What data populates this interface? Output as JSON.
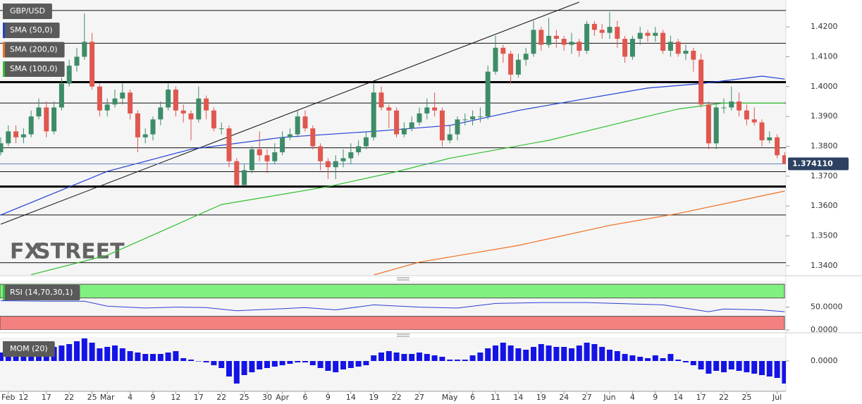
{
  "chart_data": [
    {
      "type": "candlestick",
      "name": "GBP/USD",
      "categories": [
        "Feb 9",
        "Feb 10",
        "Feb 11",
        "Feb 12",
        "Feb 15",
        "Feb 16",
        "Feb 17",
        "Feb 18",
        "Feb 19",
        "Feb 22",
        "Feb 23",
        "Feb 24",
        "Feb 25",
        "Feb 26",
        "Mar 1",
        "Mar 2",
        "Mar 3",
        "Mar 4",
        "Mar 5",
        "Mar 8",
        "Mar 9",
        "Mar 10",
        "Mar 11",
        "Mar 12",
        "Mar 15",
        "Mar 16",
        "Mar 17",
        "Mar 18",
        "Mar 19",
        "Mar 22",
        "Mar 23",
        "Mar 24",
        "Mar 25",
        "Mar 26",
        "Mar 29",
        "Mar 30",
        "Mar 31",
        "Apr 1",
        "Apr 2",
        "Apr 5",
        "Apr 6",
        "Apr 7",
        "Apr 8",
        "Apr 9",
        "Apr 12",
        "Apr 13",
        "Apr 14",
        "Apr 15",
        "Apr 16",
        "Apr 19",
        "Apr 20",
        "Apr 21",
        "Apr 22",
        "Apr 23",
        "Apr 26",
        "Apr 27",
        "Apr 28",
        "Apr 29",
        "Apr 30",
        "May 3",
        "May 4",
        "May 5",
        "May 6",
        "May 7",
        "May 10",
        "May 11",
        "May 12",
        "May 13",
        "May 14",
        "May 17",
        "May 18",
        "May 19",
        "May 20",
        "May 21",
        "May 24",
        "May 25",
        "May 26",
        "May 27",
        "May 28",
        "May 31",
        "Jun 1",
        "Jun 2",
        "Jun 3",
        "Jun 4",
        "Jun 7",
        "Jun 8",
        "Jun 9",
        "Jun 10",
        "Jun 11",
        "Jun 14",
        "Jun 15",
        "Jun 16",
        "Jun 17",
        "Jun 18",
        "Jun 21",
        "Jun 22",
        "Jun 23",
        "Jun 24",
        "Jun 25",
        "Jun 28",
        "Jun 29",
        "Jun 30",
        "Jul 1",
        "Jul 2"
      ],
      "open": [
        1.378,
        1.381,
        1.385,
        1.383,
        1.384,
        1.39,
        1.393,
        1.385,
        1.393,
        1.401,
        1.407,
        1.41,
        1.415,
        1.4,
        1.392,
        1.394,
        1.396,
        1.398,
        1.391,
        1.383,
        1.384,
        1.389,
        1.393,
        1.399,
        1.392,
        1.391,
        1.389,
        1.396,
        1.392,
        1.386,
        1.386,
        1.375,
        1.367,
        1.372,
        1.379,
        1.377,
        1.375,
        1.378,
        1.383,
        1.384,
        1.39,
        1.386,
        1.38,
        1.375,
        1.373,
        1.375,
        1.376,
        1.378,
        1.38,
        1.383,
        1.398,
        1.393,
        1.392,
        1.384,
        1.386,
        1.388,
        1.391,
        1.393,
        1.392,
        1.382,
        1.384,
        1.389,
        1.389,
        1.39,
        1.39,
        1.405,
        1.413,
        1.411,
        1.404,
        1.409,
        1.411,
        1.419,
        1.414,
        1.417,
        1.416,
        1.414,
        1.415,
        1.412,
        1.421,
        1.419,
        1.418,
        1.42,
        1.416,
        1.41,
        1.416,
        1.418,
        1.417,
        1.418,
        1.412,
        1.415,
        1.411,
        1.412,
        1.409,
        1.394,
        1.381,
        1.393,
        1.393,
        1.395,
        1.392,
        1.389,
        1.388,
        1.382,
        1.383,
        1.377
      ],
      "high": [
        1.383,
        1.387,
        1.387,
        1.386,
        1.392,
        1.396,
        1.395,
        1.395,
        1.403,
        1.409,
        1.413,
        1.4245,
        1.418,
        1.401,
        1.396,
        1.399,
        1.401,
        1.399,
        1.392,
        1.386,
        1.39,
        1.395,
        1.401,
        1.4,
        1.394,
        1.392,
        1.4,
        1.397,
        1.393,
        1.388,
        1.387,
        1.376,
        1.374,
        1.38,
        1.385,
        1.379,
        1.381,
        1.385,
        1.386,
        1.392,
        1.392,
        1.387,
        1.381,
        1.376,
        1.377,
        1.379,
        1.381,
        1.382,
        1.385,
        1.401,
        1.4,
        1.394,
        1.393,
        1.388,
        1.39,
        1.393,
        1.396,
        1.398,
        1.393,
        1.387,
        1.39,
        1.391,
        1.392,
        1.393,
        1.407,
        1.417,
        1.414,
        1.412,
        1.411,
        1.413,
        1.422,
        1.42,
        1.423,
        1.419,
        1.417,
        1.418,
        1.416,
        1.422,
        1.422,
        1.421,
        1.425,
        1.422,
        1.417,
        1.417,
        1.42,
        1.419,
        1.42,
        1.419,
        1.417,
        1.416,
        1.414,
        1.413,
        1.411,
        1.395,
        1.394,
        1.396,
        1.4,
        1.398,
        1.394,
        1.393,
        1.389,
        1.385,
        1.384,
        1.378
      ],
      "low": [
        1.377,
        1.38,
        1.381,
        1.381,
        1.383,
        1.389,
        1.383,
        1.384,
        1.392,
        1.4,
        1.405,
        1.409,
        1.399,
        1.39,
        1.39,
        1.393,
        1.394,
        1.389,
        1.378,
        1.381,
        1.382,
        1.387,
        1.392,
        1.39,
        1.388,
        1.382,
        1.388,
        1.389,
        1.385,
        1.384,
        1.373,
        1.367,
        1.367,
        1.371,
        1.375,
        1.371,
        1.374,
        1.377,
        1.382,
        1.383,
        1.385,
        1.379,
        1.372,
        1.369,
        1.369,
        1.373,
        1.374,
        1.377,
        1.379,
        1.382,
        1.392,
        1.386,
        1.383,
        1.383,
        1.385,
        1.387,
        1.389,
        1.39,
        1.38,
        1.381,
        1.382,
        1.387,
        1.387,
        1.388,
        1.389,
        1.404,
        1.408,
        1.401,
        1.403,
        1.407,
        1.41,
        1.412,
        1.413,
        1.413,
        1.412,
        1.411,
        1.41,
        1.411,
        1.417,
        1.416,
        1.416,
        1.413,
        1.408,
        1.409,
        1.414,
        1.415,
        1.415,
        1.411,
        1.41,
        1.41,
        1.409,
        1.405,
        1.393,
        1.379,
        1.379,
        1.391,
        1.392,
        1.39,
        1.387,
        1.387,
        1.38,
        1.381,
        1.376,
        1.374
      ],
      "close": [
        1.381,
        1.385,
        1.383,
        1.384,
        1.39,
        1.393,
        1.385,
        1.393,
        1.401,
        1.407,
        1.41,
        1.415,
        1.4,
        1.392,
        1.394,
        1.396,
        1.398,
        1.391,
        1.383,
        1.384,
        1.389,
        1.393,
        1.399,
        1.392,
        1.391,
        1.389,
        1.396,
        1.392,
        1.386,
        1.386,
        1.375,
        1.367,
        1.372,
        1.379,
        1.377,
        1.375,
        1.378,
        1.383,
        1.384,
        1.39,
        1.386,
        1.38,
        1.375,
        1.373,
        1.375,
        1.376,
        1.378,
        1.38,
        1.383,
        1.398,
        1.393,
        1.392,
        1.384,
        1.386,
        1.388,
        1.391,
        1.393,
        1.392,
        1.382,
        1.384,
        1.389,
        1.389,
        1.39,
        1.39,
        1.405,
        1.413,
        1.411,
        1.404,
        1.409,
        1.411,
        1.419,
        1.414,
        1.417,
        1.416,
        1.414,
        1.415,
        1.412,
        1.421,
        1.419,
        1.418,
        1.42,
        1.416,
        1.41,
        1.416,
        1.418,
        1.417,
        1.418,
        1.412,
        1.415,
        1.411,
        1.412,
        1.409,
        1.394,
        1.381,
        1.393,
        1.393,
        1.395,
        1.392,
        1.389,
        1.388,
        1.382,
        1.383,
        1.377,
        1.3741
      ],
      "up_color": "#3d8c68",
      "down_color": "#e0574f",
      "ylim": [
        1.3369,
        1.429
      ],
      "yticks": [
        {
          "value": 1.34,
          "label": "1.3400"
        },
        {
          "value": 1.35,
          "label": "1.3500"
        },
        {
          "value": 1.36,
          "label": "1.3600"
        },
        {
          "value": 1.37,
          "label": "1.3700"
        },
        {
          "value": 1.38,
          "label": "1.3800"
        },
        {
          "value": 1.39,
          "label": "1.3900"
        },
        {
          "value": 1.4,
          "label": "1.4000"
        },
        {
          "value": 1.41,
          "label": "1.4100"
        },
        {
          "value": 1.42,
          "label": "1.4200"
        }
      ],
      "series": [
        {
          "name": "SMA (50,0)",
          "color": "#2040d8",
          "x": [
            "Feb 9",
            "Mar 1",
            "Mar 16",
            "Apr 1",
            "Apr 19",
            "May 3",
            "May 14",
            "May 27",
            "Jun 8",
            "Jun 17",
            "Jun 29",
            "Jul 2"
          ],
          "values": [
            1.357,
            1.3716,
            1.379,
            1.383,
            1.385,
            1.387,
            1.392,
            1.396,
            1.3995,
            1.401,
            1.4035,
            1.4025
          ]
        },
        {
          "name": "SMA (200,0)",
          "color": "#f07020",
          "x": [
            "Apr 19",
            "Apr 27",
            "May 14",
            "Jun 1",
            "Jun 14",
            "Jul 2"
          ],
          "values": [
            1.3369,
            1.3412,
            1.3468,
            1.3535,
            1.3575,
            1.365
          ]
        },
        {
          "name": "SMA (100,0)",
          "color": "#30c030",
          "x": [
            "Feb 15",
            "Mar 1",
            "Mar 22",
            "Apr 9",
            "Apr 22",
            "May 3",
            "May 20",
            "Jun 1",
            "Jun 14",
            "Jun 22",
            "Jul 2"
          ],
          "values": [
            1.337,
            1.3435,
            1.3605,
            1.3665,
            1.3715,
            1.376,
            1.382,
            1.387,
            1.3925,
            1.3945,
            1.3945
          ]
        }
      ],
      "levels": [
        1.4255,
        1.4145,
        1.3945,
        1.3795,
        1.3715,
        1.357,
        1.341
      ],
      "key_levels": [
        1.4015,
        1.3665
      ],
      "trendline": {
        "x": [
          "Feb 9",
          "May 26"
        ],
        "values": [
          1.3539,
          1.4283
        ]
      },
      "last_price": {
        "value": 1.37411,
        "label": "1.374110"
      },
      "watermark": [
        "FX",
        "STREET"
      ]
    },
    {
      "type": "line",
      "name": "RSI (14,70,30,1)",
      "color": "#2b3fd6",
      "x": [
        "Feb 9",
        "Feb 17",
        "Feb 24",
        "Mar 1",
        "Mar 8",
        "Mar 12",
        "Mar 18",
        "Mar 24",
        "Mar 30",
        "Apr 6",
        "Apr 12",
        "Apr 19",
        "Apr 27",
        "May 4",
        "May 11",
        "May 19",
        "May 27",
        "Jun 4",
        "Jun 10",
        "Jun 18",
        "Jun 22",
        "Jun 29",
        "Jul 2"
      ],
      "values": [
        64,
        63,
        63,
        52,
        48,
        50,
        49,
        42,
        45,
        49,
        44,
        55,
        50,
        48,
        58,
        60,
        60,
        57,
        55,
        40,
        46,
        44,
        40
      ],
      "ylim": [
        0,
        108
      ],
      "yticks": [
        {
          "value": 50,
          "label": "50.0000"
        },
        {
          "value": 0,
          "label": "0.0000"
        }
      ],
      "bands": [
        {
          "from": 70,
          "to": 100,
          "color": "#80f080"
        },
        {
          "from": 0,
          "to": 30,
          "color": "#f48080"
        }
      ]
    },
    {
      "type": "bar",
      "name": "MOM (20)",
      "color": "#1414e6",
      "values": [
        0.012,
        0.013,
        0.011,
        0.014,
        0.014,
        0.016,
        0.018,
        0.02,
        0.022,
        0.024,
        0.028,
        0.032,
        0.026,
        0.018,
        0.02,
        0.022,
        0.018,
        0.014,
        0.012,
        0.01,
        0.01,
        0.01,
        0.012,
        0.014,
        0.004,
        0.002,
        0.0,
        -0.002,
        -0.006,
        -0.01,
        -0.022,
        -0.032,
        -0.02,
        -0.016,
        -0.012,
        -0.01,
        -0.008,
        -0.006,
        -0.004,
        -0.002,
        -0.002,
        -0.006,
        -0.01,
        -0.014,
        -0.016,
        -0.012,
        -0.01,
        -0.008,
        -0.006,
        0.008,
        0.012,
        0.014,
        0.012,
        0.01,
        0.01,
        0.012,
        0.01,
        0.008,
        0.006,
        0.002,
        0.002,
        0.002,
        0.008,
        0.012,
        0.018,
        0.022,
        0.026,
        0.022,
        0.018,
        0.016,
        0.02,
        0.024,
        0.022,
        0.02,
        0.02,
        0.018,
        0.022,
        0.026,
        0.024,
        0.02,
        0.016,
        0.014,
        0.01,
        0.008,
        0.006,
        0.004,
        0.008,
        0.004,
        0.01,
        0.002,
        -0.002,
        -0.006,
        -0.012,
        -0.018,
        -0.014,
        -0.016,
        -0.012,
        -0.014,
        -0.016,
        -0.018,
        -0.02,
        -0.022,
        -0.024,
        -0.032
      ],
      "ylim": [
        -0.043,
        0.034
      ],
      "yticks": [
        {
          "value": 0,
          "label": "0.0000"
        }
      ],
      "xticks": [
        {
          "value": "Feb 10",
          "label": "Feb"
        },
        {
          "value": "Feb 12",
          "label": "12"
        },
        {
          "value": "Feb 17",
          "label": "17"
        },
        {
          "value": "Feb 22",
          "label": "22"
        },
        {
          "value": "Feb 25",
          "label": "25"
        },
        {
          "value": "Mar 1",
          "label": "Mar"
        },
        {
          "value": "Mar 4",
          "label": "4"
        },
        {
          "value": "Mar 9",
          "label": "9"
        },
        {
          "value": "Mar 12",
          "label": "12"
        },
        {
          "value": "Mar 17",
          "label": "17"
        },
        {
          "value": "Mar 22",
          "label": "22"
        },
        {
          "value": "Mar 25",
          "label": "25"
        },
        {
          "value": "Mar 30",
          "label": "30"
        },
        {
          "value": "Apr 1",
          "label": "Apr"
        },
        {
          "value": "Apr 6",
          "label": "6"
        },
        {
          "value": "Apr 9",
          "label": "9"
        },
        {
          "value": "Apr 14",
          "label": "14"
        },
        {
          "value": "Apr 19",
          "label": "19"
        },
        {
          "value": "Apr 22",
          "label": "22"
        },
        {
          "value": "Apr 27",
          "label": "27"
        },
        {
          "value": "May 3",
          "label": "May"
        },
        {
          "value": "May 6",
          "label": "6"
        },
        {
          "value": "May 11",
          "label": "11"
        },
        {
          "value": "May 14",
          "label": "14"
        },
        {
          "value": "May 19",
          "label": "19"
        },
        {
          "value": "May 24",
          "label": "24"
        },
        {
          "value": "May 27",
          "label": "27"
        },
        {
          "value": "Jun 1",
          "label": "Jun"
        },
        {
          "value": "Jun 4",
          "label": "4"
        },
        {
          "value": "Jun 9",
          "label": "9"
        },
        {
          "value": "Jun 14",
          "label": "14"
        },
        {
          "value": "Jun 17",
          "label": "17"
        },
        {
          "value": "Jun 22",
          "label": "22"
        },
        {
          "value": "Jun 25",
          "label": "25"
        },
        {
          "value": "Jul 1",
          "label": "Jul"
        }
      ]
    }
  ]
}
